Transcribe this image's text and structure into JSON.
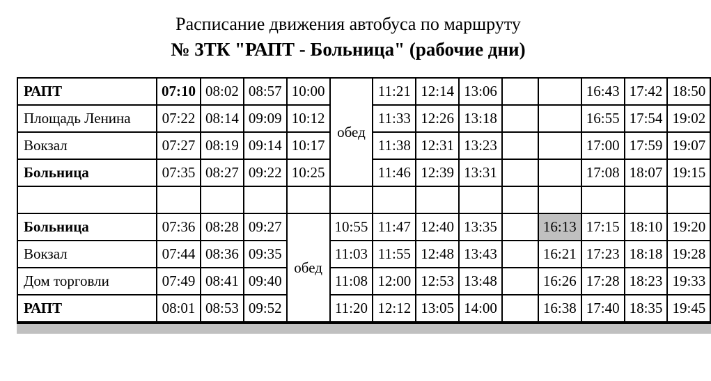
{
  "title": "Расписание движения автобуса по маршруту",
  "subtitle": "№ 3ТК \"РАПТ - Больница\" (рабочие дни)",
  "obed_label": "обед",
  "styling": {
    "border_color": "#000000",
    "highlight_bg": "#c0c0c0",
    "footer_bg": "#c0c0c0",
    "font_family": "Times New Roman",
    "title_fontsize": 26,
    "subtitle_fontsize": 27,
    "cell_fontsize": 21
  },
  "section_a": {
    "stops": [
      {
        "name": "РАПТ",
        "bold": true
      },
      {
        "name": "Площадь Ленина",
        "bold": false
      },
      {
        "name": "Вокзал",
        "bold": false
      },
      {
        "name": "Больница",
        "bold": true
      }
    ],
    "obed_col_index": 4,
    "rows": [
      [
        {
          "t": "07:10",
          "b": true
        },
        {
          "t": "08:02"
        },
        {
          "t": "08:57"
        },
        {
          "t": "10:00"
        },
        {
          "t": "11:21"
        },
        {
          "t": "12:14"
        },
        {
          "t": "13:06"
        },
        {
          "t": ""
        },
        {
          "t": ""
        },
        {
          "t": "16:43"
        },
        {
          "t": "17:42"
        },
        {
          "t": "18:50"
        }
      ],
      [
        {
          "t": "07:22"
        },
        {
          "t": "08:14"
        },
        {
          "t": "09:09"
        },
        {
          "t": "10:12"
        },
        {
          "t": "11:33"
        },
        {
          "t": "12:26"
        },
        {
          "t": "13:18"
        },
        {
          "t": ""
        },
        {
          "t": ""
        },
        {
          "t": "16:55"
        },
        {
          "t": "17:54"
        },
        {
          "t": "19:02"
        }
      ],
      [
        {
          "t": "07:27"
        },
        {
          "t": "08:19"
        },
        {
          "t": "09:14"
        },
        {
          "t": "10:17"
        },
        {
          "t": "11:38"
        },
        {
          "t": "12:31"
        },
        {
          "t": "13:23"
        },
        {
          "t": ""
        },
        {
          "t": ""
        },
        {
          "t": "17:00"
        },
        {
          "t": "17:59"
        },
        {
          "t": "19:07"
        }
      ],
      [
        {
          "t": "07:35"
        },
        {
          "t": "08:27"
        },
        {
          "t": "09:22"
        },
        {
          "t": "10:25"
        },
        {
          "t": "11:46"
        },
        {
          "t": "12:39"
        },
        {
          "t": "13:31"
        },
        {
          "t": ""
        },
        {
          "t": ""
        },
        {
          "t": "17:08"
        },
        {
          "t": "18:07"
        },
        {
          "t": "19:15"
        }
      ]
    ]
  },
  "section_b": {
    "stops": [
      {
        "name": "Больница",
        "bold": true
      },
      {
        "name": "Вокзал",
        "bold": false
      },
      {
        "name": "Дом торговли",
        "bold": false
      },
      {
        "name": "РАПТ",
        "bold": true
      }
    ],
    "obed_col_index": 3,
    "rows": [
      [
        {
          "t": "07:36"
        },
        {
          "t": "08:28"
        },
        {
          "t": "09:27"
        },
        {
          "t": "10:55"
        },
        {
          "t": "11:47"
        },
        {
          "t": "12:40"
        },
        {
          "t": "13:35"
        },
        {
          "t": ""
        },
        {
          "t": "16:13",
          "hl": true
        },
        {
          "t": "17:15"
        },
        {
          "t": "18:10"
        },
        {
          "t": "19:20"
        }
      ],
      [
        {
          "t": "07:44"
        },
        {
          "t": "08:36"
        },
        {
          "t": "09:35"
        },
        {
          "t": "11:03"
        },
        {
          "t": "11:55"
        },
        {
          "t": "12:48"
        },
        {
          "t": "13:43"
        },
        {
          "t": ""
        },
        {
          "t": "16:21"
        },
        {
          "t": "17:23"
        },
        {
          "t": "18:18"
        },
        {
          "t": "19:28"
        }
      ],
      [
        {
          "t": "07:49"
        },
        {
          "t": "08:41"
        },
        {
          "t": "09:40"
        },
        {
          "t": "11:08"
        },
        {
          "t": "12:00"
        },
        {
          "t": "12:53"
        },
        {
          "t": "13:48"
        },
        {
          "t": ""
        },
        {
          "t": "16:26"
        },
        {
          "t": "17:28"
        },
        {
          "t": "18:23"
        },
        {
          "t": "19:33"
        }
      ],
      [
        {
          "t": "08:01"
        },
        {
          "t": "08:53"
        },
        {
          "t": "09:52"
        },
        {
          "t": "11:20"
        },
        {
          "t": "12:12"
        },
        {
          "t": "13:05"
        },
        {
          "t": "14:00"
        },
        {
          "t": ""
        },
        {
          "t": "16:38"
        },
        {
          "t": "17:40"
        },
        {
          "t": "18:35"
        },
        {
          "t": "19:45"
        }
      ]
    ]
  },
  "spacer_cols": 14
}
